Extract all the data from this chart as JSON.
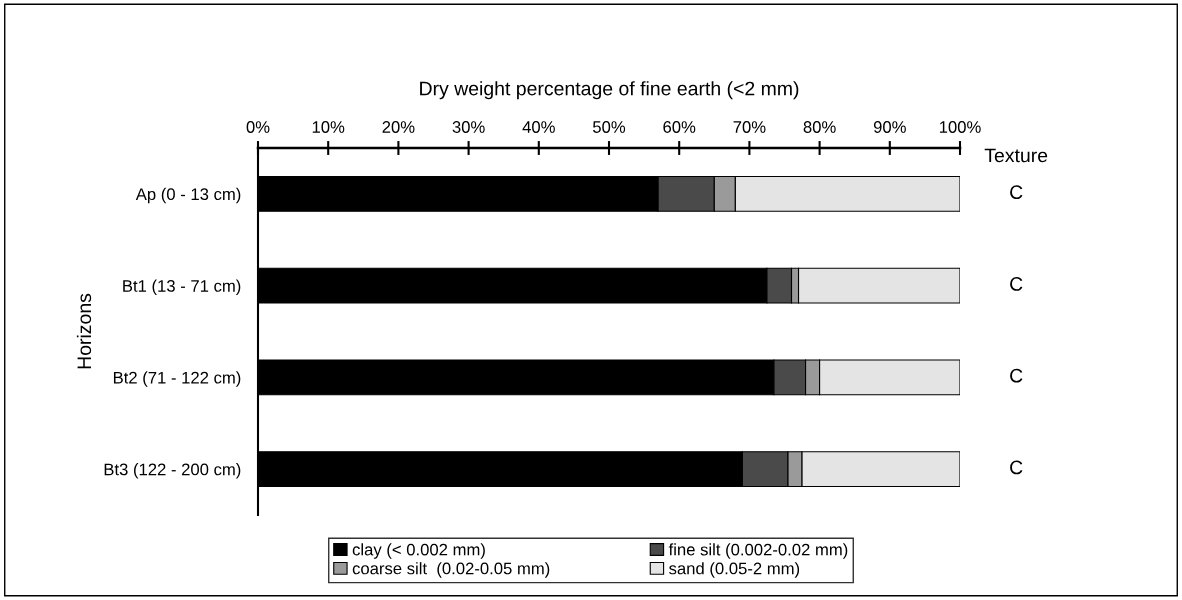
{
  "chart_data": {
    "type": "bar",
    "orientation": "horizontal",
    "stacked": true,
    "title": "Dry weight percentage of fine earth (<2 mm)",
    "ylabel": "Horizons",
    "categories": [
      "Ap (0 - 13 cm)",
      "Bt1 (13 - 71 cm)",
      "Bt2 (71 - 122 cm)",
      "Bt3 (122 - 200 cm)"
    ],
    "series": [
      {
        "name": "clay (< 0.002 mm)",
        "color": "#000000",
        "values": [
          57,
          72.5,
          73.5,
          69
        ]
      },
      {
        "name": "fine silt (0.002-0.02 mm)",
        "color": "#4a4a4a",
        "values": [
          8,
          3.5,
          4.5,
          6.5
        ]
      },
      {
        "name": "coarse silt  (0.02-0.05 mm)",
        "color": "#9a9a9a",
        "values": [
          3,
          1,
          2,
          2
        ]
      },
      {
        "name": "sand (0.05-2 mm)",
        "color": "#e4e4e4",
        "values": [
          32,
          23,
          20,
          22.5
        ]
      }
    ],
    "xlim": [
      0,
      100
    ],
    "xticks": [
      {
        "value": 0,
        "label": "0%"
      },
      {
        "value": 10,
        "label": "10%"
      },
      {
        "value": 20,
        "label": "20%"
      },
      {
        "value": 30,
        "label": "30%"
      },
      {
        "value": 40,
        "label": "40%"
      },
      {
        "value": 50,
        "label": "50%"
      },
      {
        "value": 60,
        "label": "60%"
      },
      {
        "value": 70,
        "label": "70%"
      },
      {
        "value": 80,
        "label": "80%"
      },
      {
        "value": 90,
        "label": "90%"
      },
      {
        "value": 100,
        "label": "100%"
      }
    ],
    "annotations": [
      "Texture",
      "C",
      "C",
      "C",
      "C"
    ],
    "legend": "bottom",
    "grid": false
  }
}
